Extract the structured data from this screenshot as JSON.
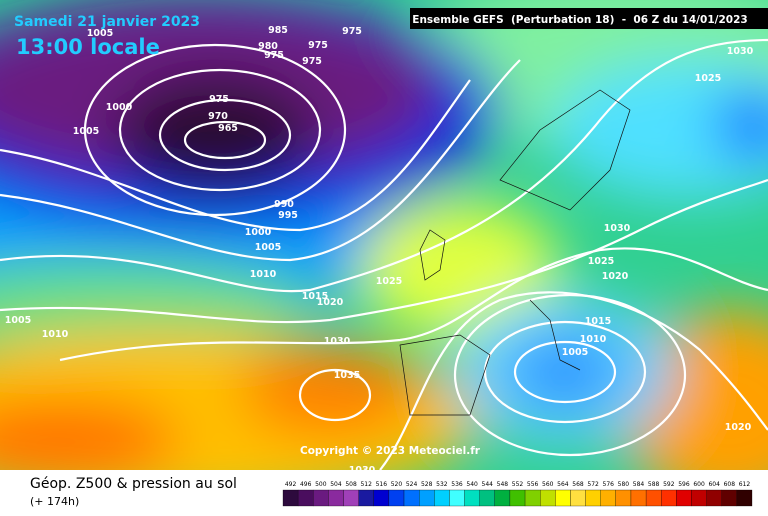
{
  "header": {
    "date": "Samedi 21 janvier 2023",
    "time": "13:00 locale",
    "model": "Ensemble GEFS  (Perturbation 18)  -  06 Z du 14/01/2023"
  },
  "map": {
    "isobar_labels": [
      "1005",
      "985",
      "975",
      "980",
      "975",
      "975",
      "975",
      "1000",
      "1005",
      "975",
      "970",
      "965",
      "990",
      "995",
      "1000",
      "1005",
      "1010",
      "1015",
      "1020",
      "1025",
      "1030",
      "1035",
      "1030",
      "1030",
      "1025",
      "1030",
      "1025",
      "1020",
      "1015",
      "1010",
      "1005",
      "1020",
      "1005",
      "1010"
    ],
    "copyright": "Copyright © 2023 Meteociel.fr"
  },
  "footer": {
    "title": "Géop. Z500 & pression au sol",
    "lead": "(+ 174h)"
  },
  "legend": {
    "values": [
      492,
      496,
      500,
      504,
      508,
      512,
      516,
      520,
      524,
      528,
      532,
      536,
      540,
      544,
      548,
      552,
      556,
      560,
      564,
      568,
      572,
      576,
      580,
      584,
      588,
      592,
      596,
      600,
      604,
      608,
      612
    ],
    "colors": [
      "#2d0a3d",
      "#4a0d5e",
      "#6a1a80",
      "#8a2a9e",
      "#a040b8",
      "#1a1aa0",
      "#0000d0",
      "#0040f0",
      "#0070ff",
      "#00a0ff",
      "#00d0ff",
      "#40ffff",
      "#00e0c0",
      "#00c080",
      "#00b040",
      "#40c000",
      "#80d000",
      "#c0e000",
      "#ffff00",
      "#ffe040",
      "#ffd000",
      "#ffb000",
      "#ff9000",
      "#ff7000",
      "#ff5000",
      "#ff3000",
      "#e00000",
      "#c00000",
      "#900000",
      "#600000",
      "#300000"
    ]
  }
}
